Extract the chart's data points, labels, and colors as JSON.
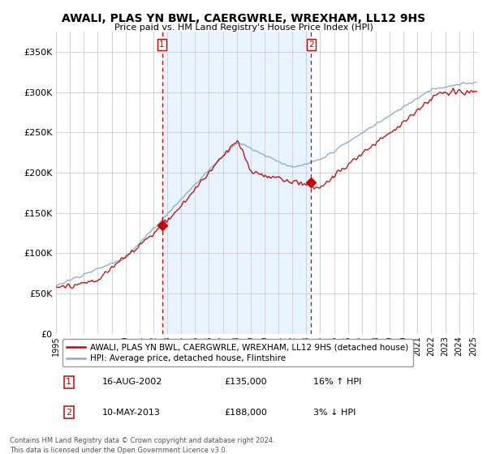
{
  "title": "AWALI, PLAS YN BWL, CAERGWRLE, WREXHAM, LL12 9HS",
  "subtitle": "Price paid vs. HM Land Registry's House Price Index (HPI)",
  "ylabel_ticks": [
    "£0",
    "£50K",
    "£100K",
    "£150K",
    "£200K",
    "£250K",
    "£300K",
    "£350K"
  ],
  "ytick_vals": [
    0,
    50000,
    100000,
    150000,
    200000,
    250000,
    300000,
    350000
  ],
  "ylim": [
    0,
    375000
  ],
  "xlim_start": 1995.0,
  "xlim_end": 2025.3,
  "legend_line1": "AWALI, PLAS YN BWL, CAERGWRLE, WREXHAM, LL12 9HS (detached house)",
  "legend_line2": "HPI: Average price, detached house, Flintshire",
  "marker1_x": 2002.62,
  "marker1_y": 135000,
  "marker2_x": 2013.36,
  "marker2_y": 188000,
  "table_row1": [
    "1",
    "16-AUG-2002",
    "£135,000",
    "16% ↑ HPI"
  ],
  "table_row2": [
    "2",
    "10-MAY-2013",
    "£188,000",
    "3% ↓ HPI"
  ],
  "footer1": "Contains HM Land Registry data © Crown copyright and database right 2024.",
  "footer2": "This data is licensed under the Open Government Licence v3.0.",
  "red_color": "#cc0000",
  "blue_color": "#88aacc",
  "shade_color": "#ddeeff",
  "bg_color": "#ffffff",
  "grid_color": "#cccccc"
}
